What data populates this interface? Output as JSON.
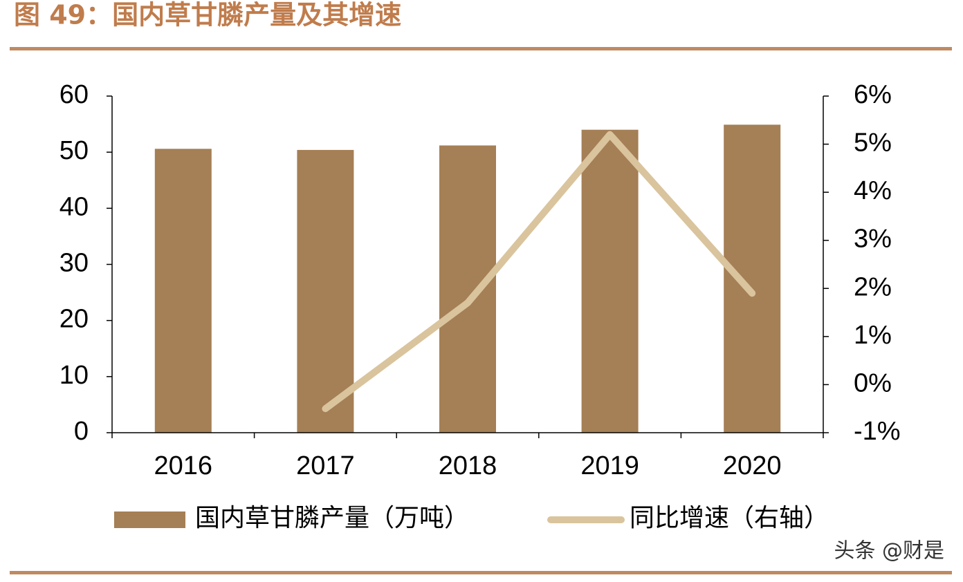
{
  "chart_data": {
    "type": "bar_line",
    "title": "图 49：国内草甘膦产量及其增速",
    "categories": [
      "2016",
      "2017",
      "2018",
      "2019",
      "2020"
    ],
    "series": [
      {
        "name": "国内草甘膦产量（万吨）",
        "type": "bar",
        "color": "#a57f55",
        "values": [
          50.6,
          50.4,
          51.2,
          54.0,
          54.9
        ]
      },
      {
        "name": "同比增速（右轴）",
        "type": "line",
        "axis": "y2",
        "color": "#d9c49d",
        "values": [
          null,
          -0.5,
          1.7,
          5.2,
          1.9
        ]
      }
    ],
    "ylim": [
      0,
      60
    ],
    "yticks": [
      0,
      10,
      20,
      30,
      40,
      50,
      60
    ],
    "y2lim": [
      -1,
      6
    ],
    "y2ticks": [
      {
        "value": -1,
        "label": "-1%"
      },
      {
        "value": 0,
        "label": "0%"
      },
      {
        "value": 1,
        "label": "1%"
      },
      {
        "value": 2,
        "label": "2%"
      },
      {
        "value": 3,
        "label": "3%"
      },
      {
        "value": 4,
        "label": "4%"
      },
      {
        "value": 5,
        "label": "5%"
      },
      {
        "value": 6,
        "label": "6%"
      }
    ],
    "legend": "bottom",
    "watermark": "头条 @财是"
  }
}
